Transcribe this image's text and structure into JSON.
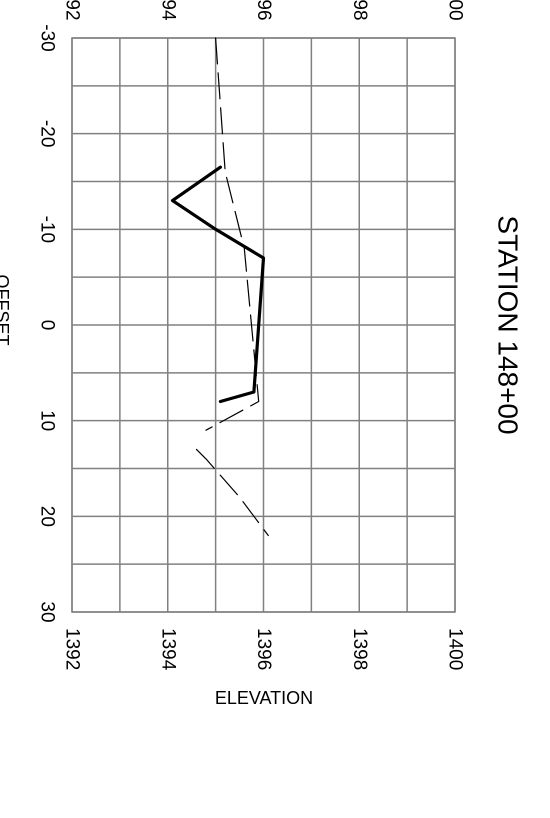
{
  "chart_data": {
    "type": "line",
    "title": "STATION 148+00",
    "xlabel": "OFFSET",
    "ylabel": "ELEVATION",
    "xlim": [
      -30,
      30
    ],
    "ylim": [
      1392,
      1400
    ],
    "x_ticks": [
      "-30",
      "-20",
      "-10",
      "0",
      "10",
      "20",
      "30"
    ],
    "y_ticks": [
      "1392",
      "1394",
      "1396",
      "1398",
      "1400"
    ],
    "top_tick_fragments": [
      "92",
      "94",
      "96",
      "98",
      "00"
    ],
    "grid": true,
    "series": [
      {
        "style": "solid-thick",
        "color": "#000000",
        "points": [
          [
            -16.5,
            1395.1
          ],
          [
            -13,
            1394.1
          ],
          [
            -10,
            1395.0
          ],
          [
            -7,
            1396.0
          ],
          [
            7,
            1395.8
          ],
          [
            8,
            1395.1
          ]
        ]
      },
      {
        "style": "dashed",
        "color": "#000000",
        "points": [
          [
            -30,
            1395.0
          ],
          [
            -16,
            1395.2
          ],
          [
            -8,
            1395.6
          ],
          [
            8,
            1395.9
          ],
          [
            11,
            1394.8
          ]
        ]
      },
      {
        "style": "dashed",
        "color": "#000000",
        "points": [
          [
            13,
            1394.6
          ],
          [
            14,
            1394.8
          ],
          [
            18,
            1395.5
          ],
          [
            20,
            1395.8
          ],
          [
            22,
            1396.1
          ]
        ]
      }
    ]
  }
}
